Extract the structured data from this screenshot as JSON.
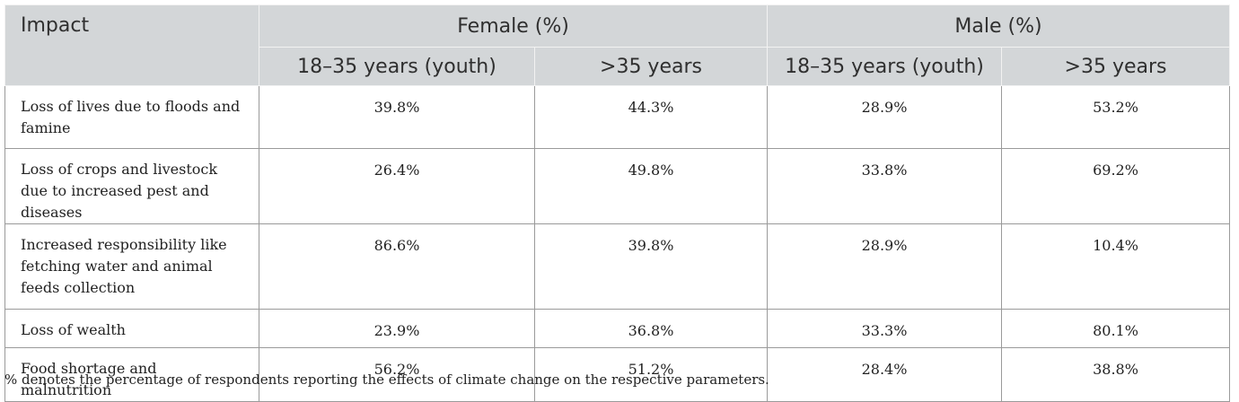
{
  "table": {
    "header": {
      "impact": "Impact",
      "female": "Female (%)",
      "male": "Male (%)",
      "female_youth": "18–35 years (youth)",
      "female_older": ">35 years",
      "male_youth": "18–35 years (youth)",
      "male_older": ">35 years"
    },
    "rows": [
      {
        "impact": "Loss of lives due to floods and famine",
        "female_youth": "39.8%",
        "female_older": "44.3%",
        "male_youth": "28.9%",
        "male_older": "53.2%"
      },
      {
        "impact": "Loss of crops and livestock due to increased pest and diseases",
        "female_youth": "26.4%",
        "female_older": "49.8%",
        "male_youth": "33.8%",
        "male_older": "69.2%"
      },
      {
        "impact": "Increased responsibility like fetching water and animal feeds collection",
        "female_youth": "86.6%",
        "female_older": "39.8%",
        "male_youth": "28.9%",
        "male_older": "10.4%"
      },
      {
        "impact": "Loss of wealth",
        "female_youth": "23.9%",
        "female_older": "36.8%",
        "male_youth": "33.3%",
        "male_older": "80.1%"
      },
      {
        "impact": "Food shortage and malnutrition",
        "female_youth": "56.2%",
        "female_older": "51.2%",
        "male_youth": "28.4%",
        "male_older": "38.8%"
      }
    ]
  },
  "footnote": "% denotes the percentage of respondents reporting the effects of climate change on the respective parameters."
}
